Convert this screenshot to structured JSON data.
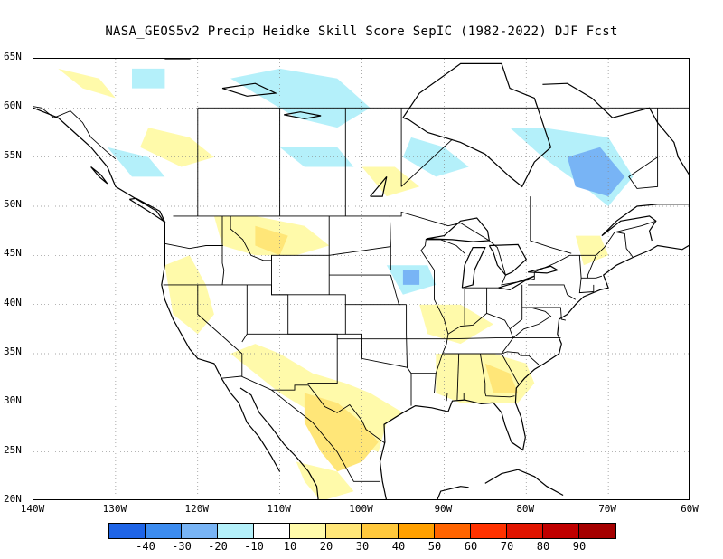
{
  "title": "NASA_GEOS5v2 Precip Heidke Skill Score SepIC (1982-2022) DJF Fcst",
  "map": {
    "lat_labels": [
      "65N",
      "60N",
      "55N",
      "50N",
      "45N",
      "40N",
      "35N",
      "30N",
      "25N",
      "20N"
    ],
    "lat_values": [
      65,
      60,
      55,
      50,
      45,
      40,
      35,
      30,
      25,
      20
    ],
    "lon_labels": [
      "140W",
      "130W",
      "120W",
      "110W",
      "100W",
      "90W",
      "80W",
      "70W",
      "60W"
    ],
    "lon_values": [
      -140,
      -130,
      -120,
      -110,
      -100,
      -90,
      -80,
      -70,
      -60
    ],
    "extent": {
      "lon_min": -140,
      "lon_max": -60,
      "lat_min": 20,
      "lat_max": 65
    }
  },
  "colorbar": {
    "colors": [
      "#1e64e6",
      "#3c8cf0",
      "#78b4f5",
      "#b4f0fa",
      "#ffffff",
      "#fffaaa",
      "#ffe678",
      "#ffc83c",
      "#ffa000",
      "#ff6400",
      "#ff3200",
      "#e11400",
      "#c00000",
      "#a50000"
    ],
    "labels": [
      "-40",
      "-30",
      "-20",
      "-10",
      "10",
      "20",
      "30",
      "40",
      "50",
      "60",
      "70",
      "80",
      "90"
    ]
  }
}
